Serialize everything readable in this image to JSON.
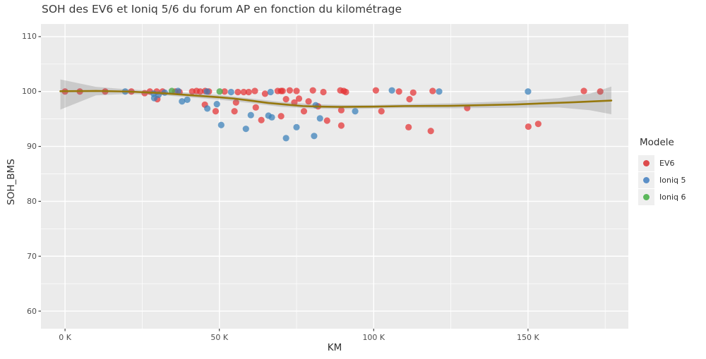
{
  "title": "SOH des EV6 et Ioniq 5/6 du forum AP en fonction du kilométrage",
  "axes": {
    "x": {
      "label": "KM",
      "major_ticks": [
        {
          "value": 0,
          "label": "0 K"
        },
        {
          "value": 50,
          "label": "50 K"
        },
        {
          "value": 100,
          "label": "100 K"
        },
        {
          "value": 150,
          "label": "150 K"
        }
      ],
      "minor_ticks": [
        25,
        75,
        125,
        175
      ]
    },
    "y": {
      "label": "SOH_BMS",
      "major_ticks": [
        {
          "value": 110,
          "label": "110"
        },
        {
          "value": 100,
          "label": "100"
        },
        {
          "value": 90,
          "label": "90"
        },
        {
          "value": 80,
          "label": "80"
        },
        {
          "value": 70,
          "label": "70"
        },
        {
          "value": 60,
          "label": "60"
        }
      ],
      "minor_ticks": [
        65,
        75,
        85,
        95,
        105
      ]
    }
  },
  "legend": {
    "title": "Modele",
    "items": [
      {
        "label": "EV6",
        "color": "#DD4B4C"
      },
      {
        "label": "Ioniq 5",
        "color": "#5B8FC7"
      },
      {
        "label": "Ioniq 6",
        "color": "#5CB85C"
      }
    ]
  },
  "colors": {
    "panel_bg": "#EBEBEB",
    "grid": "#FFFFFF",
    "tick_mark": "#333333",
    "tick_label": "#4D4D4D",
    "trend_line": "#96780D",
    "confidence_band": "rgba(115,115,115,0.27)",
    "legend_key_bg": "#EFEFEF"
  },
  "chart_data": {
    "type": "scatter",
    "title": "SOH des EV6 et Ioniq 5/6 du forum AP en fonction du kilométrage",
    "xlabel": "KM",
    "ylabel": "SOH_BMS",
    "x_unit": "thousands of km",
    "xlim": [
      -7.8,
      182.5
    ],
    "ylim": [
      56.8,
      112.3
    ],
    "grid": true,
    "legend_position": "right",
    "series": [
      {
        "name": "EV6",
        "fill": "rgba(227,48,50,0.72)",
        "points": [
          [
            0,
            100
          ],
          [
            4.8,
            100
          ],
          [
            13,
            100
          ],
          [
            21.5,
            100
          ],
          [
            25.8,
            99.7
          ],
          [
            27.5,
            100
          ],
          [
            29.7,
            100
          ],
          [
            29.9,
            98.6
          ],
          [
            31.6,
            100
          ],
          [
            35.7,
            100
          ],
          [
            37.1,
            99.9
          ],
          [
            41.2,
            100
          ],
          [
            42.6,
            100.1
          ],
          [
            43.8,
            100
          ],
          [
            45.4,
            100.1
          ],
          [
            46.6,
            100
          ],
          [
            45.3,
            97.6
          ],
          [
            48.8,
            96.4
          ],
          [
            51.7,
            100
          ],
          [
            54.9,
            96.4
          ],
          [
            55.4,
            98.0
          ],
          [
            56,
            99.9
          ],
          [
            57.9,
            99.9
          ],
          [
            59.5,
            99.9
          ],
          [
            61.5,
            100.1
          ],
          [
            61.8,
            97.1
          ],
          [
            63.6,
            94.8
          ],
          [
            64.8,
            99.6
          ],
          [
            68.9,
            100.1
          ],
          [
            70,
            100.1
          ],
          [
            70.5,
            100.1
          ],
          [
            70,
            95.5
          ],
          [
            71.6,
            98.6
          ],
          [
            72.8,
            100.2
          ],
          [
            74.3,
            98.0
          ],
          [
            75,
            100.1
          ],
          [
            75.8,
            98.7
          ],
          [
            77.4,
            96.4
          ],
          [
            78.9,
            98.2
          ],
          [
            80.3,
            100.2
          ],
          [
            82,
            97.3
          ],
          [
            83.7,
            99.9
          ],
          [
            84.9,
            94.7
          ],
          [
            89.2,
            100.2
          ],
          [
            89.5,
            96.6
          ],
          [
            89.5,
            93.8
          ],
          [
            90.3,
            100.1
          ],
          [
            91,
            99.9
          ],
          [
            100.7,
            100.2
          ],
          [
            102.5,
            96.4
          ],
          [
            108.2,
            100
          ],
          [
            111.3,
            93.5
          ],
          [
            111.6,
            98.6
          ],
          [
            112.8,
            99.8
          ],
          [
            118.5,
            92.8
          ],
          [
            119.1,
            100.1
          ],
          [
            130.3,
            97.0
          ],
          [
            150.1,
            93.6
          ],
          [
            153.3,
            94.1
          ],
          [
            168.1,
            100.1
          ],
          [
            173.4,
            100
          ]
        ]
      },
      {
        "name": "Ioniq 5",
        "fill": "rgba(55,126,184,0.72)",
        "points": [
          [
            19.5,
            100
          ],
          [
            28.7,
            99.6
          ],
          [
            28.9,
            98.8
          ],
          [
            30.3,
            99.4
          ],
          [
            32.3,
            99.8
          ],
          [
            36.6,
            100.1
          ],
          [
            37.9,
            98.2
          ],
          [
            39.6,
            98.5
          ],
          [
            46,
            100
          ],
          [
            46.1,
            96.9
          ],
          [
            49.2,
            97.7
          ],
          [
            50.6,
            93.9
          ],
          [
            53.8,
            99.9
          ],
          [
            58.6,
            93.2
          ],
          [
            60.2,
            95.7
          ],
          [
            65.9,
            95.6
          ],
          [
            66.6,
            99.9
          ],
          [
            67,
            95.3
          ],
          [
            71.6,
            91.5
          ],
          [
            75,
            93.5
          ],
          [
            80.7,
            91.9
          ],
          [
            81.2,
            97.5
          ],
          [
            82.6,
            95.1
          ],
          [
            94,
            96.4
          ],
          [
            105.9,
            100.2
          ],
          [
            121.2,
            100
          ],
          [
            150,
            100
          ]
        ]
      },
      {
        "name": "Ioniq 6",
        "fill": "rgba(77,170,74,0.8)",
        "points": [
          [
            34.6,
            100.1
          ],
          [
            50.1,
            100
          ]
        ]
      }
    ],
    "smoother": {
      "type": "loess",
      "line": [
        [
          -1.5,
          100.05
        ],
        [
          10,
          100.1
        ],
        [
          20,
          100
        ],
        [
          30,
          99.75
        ],
        [
          40,
          99.35
        ],
        [
          50,
          98.95
        ],
        [
          55,
          98.7
        ],
        [
          60,
          98.35
        ],
        [
          66,
          97.9
        ],
        [
          72,
          97.6
        ],
        [
          77,
          97.35
        ],
        [
          83,
          97.25
        ],
        [
          89,
          97.2
        ],
        [
          100,
          97.25
        ],
        [
          110,
          97.35
        ],
        [
          126,
          97.4
        ],
        [
          146,
          97.65
        ],
        [
          165,
          98.05
        ],
        [
          177,
          98.35
        ]
      ],
      "band_upper": [
        [
          -1.5,
          102.2
        ],
        [
          10,
          100.85
        ],
        [
          20,
          100.4
        ],
        [
          30,
          100.1
        ],
        [
          40,
          99.75
        ],
        [
          50,
          99.35
        ],
        [
          60,
          98.75
        ],
        [
          70,
          98.1
        ],
        [
          80,
          97.7
        ],
        [
          90,
          97.55
        ],
        [
          100,
          97.55
        ],
        [
          110,
          97.7
        ],
        [
          125,
          97.85
        ],
        [
          145,
          98.25
        ],
        [
          160,
          98.8
        ],
        [
          170,
          99.6
        ],
        [
          177,
          100.9
        ]
      ],
      "band_lower": [
        [
          -1.5,
          96.7
        ],
        [
          10,
          99.3
        ],
        [
          20,
          99.55
        ],
        [
          30,
          99.4
        ],
        [
          40,
          98.95
        ],
        [
          50,
          98.5
        ],
        [
          60,
          97.9
        ],
        [
          70,
          97.2
        ],
        [
          80,
          96.9
        ],
        [
          90,
          96.8
        ],
        [
          100,
          96.9
        ],
        [
          110,
          97.0
        ],
        [
          125,
          96.95
        ],
        [
          145,
          97.05
        ],
        [
          160,
          97.1
        ],
        [
          170,
          96.6
        ],
        [
          177,
          95.85
        ]
      ]
    }
  }
}
